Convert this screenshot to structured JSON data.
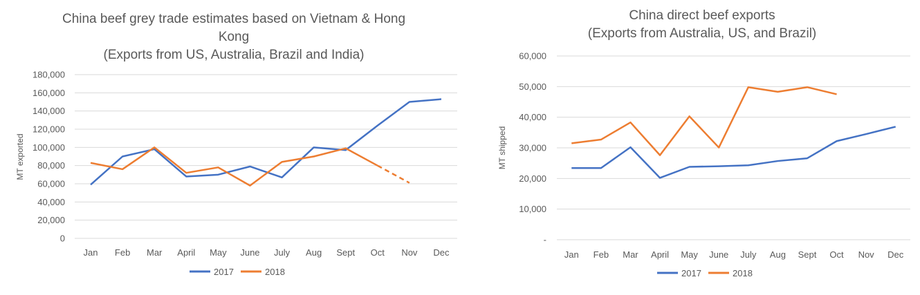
{
  "colors": {
    "series_2017": "#4472c4",
    "series_2018": "#ed7d31",
    "grid": "#d9d9d9",
    "text": "#595959"
  },
  "chart_data": [
    {
      "type": "line",
      "title_lines": [
        "China beef grey trade estimates based on Vietnam & Hong",
        "Kong",
        "(Exports from US, Australia, Brazil and India)"
      ],
      "xlabel": "",
      "ylabel": "MT exported",
      "categories": [
        "Jan",
        "Feb",
        "Mar",
        "April",
        "May",
        "June",
        "July",
        "Aug",
        "Sept",
        "Oct",
        "Nov",
        "Dec"
      ],
      "ylim": [
        0,
        180000
      ],
      "yticks": [
        0,
        20000,
        40000,
        60000,
        80000,
        100000,
        120000,
        140000,
        160000,
        180000
      ],
      "ytick_labels": [
        "0",
        "20,000",
        "40,000",
        "60,000",
        "80,000",
        "100,000",
        "120,000",
        "140,000",
        "160,000",
        "180,000"
      ],
      "grid": true,
      "legend_position": "bottom",
      "series": [
        {
          "name": "2017",
          "color": "#4472c4",
          "values": [
            59000,
            90000,
            98000,
            68000,
            70000,
            79000,
            67000,
            100000,
            97000,
            124000,
            150000,
            153000
          ]
        },
        {
          "name": "2018",
          "color": "#ed7d31",
          "values": [
            83000,
            76000,
            100000,
            72000,
            78000,
            58000,
            84000,
            90000,
            99000,
            80000,
            61000,
            null
          ],
          "dashed_from_index": 9
        }
      ]
    },
    {
      "type": "line",
      "title_lines": [
        "China direct  beef exports",
        "(Exports from Australia, US, and Brazil)"
      ],
      "xlabel": "",
      "ylabel": "MT shipped",
      "categories": [
        "Jan",
        "Feb",
        "Mar",
        "April",
        "May",
        "June",
        "July",
        "Aug",
        "Sept",
        "Oct",
        "Nov",
        "Dec"
      ],
      "ylim": [
        0,
        60000
      ],
      "yticks": [
        0,
        10000,
        20000,
        30000,
        40000,
        50000,
        60000
      ],
      "ytick_labels": [
        "-",
        "10,000",
        "20,000",
        "30,000",
        "40,000",
        "50,000",
        "60,000"
      ],
      "grid": true,
      "legend_position": "bottom",
      "series": [
        {
          "name": "2017",
          "color": "#4472c4",
          "values": [
            23400,
            23400,
            30200,
            20200,
            23800,
            24000,
            24300,
            25700,
            26600,
            32200,
            34500,
            36900
          ]
        },
        {
          "name": "2018",
          "color": "#ed7d31",
          "values": [
            31500,
            32700,
            38300,
            27600,
            40300,
            30100,
            49800,
            48300,
            49800,
            47500,
            null,
            null
          ]
        }
      ]
    }
  ]
}
